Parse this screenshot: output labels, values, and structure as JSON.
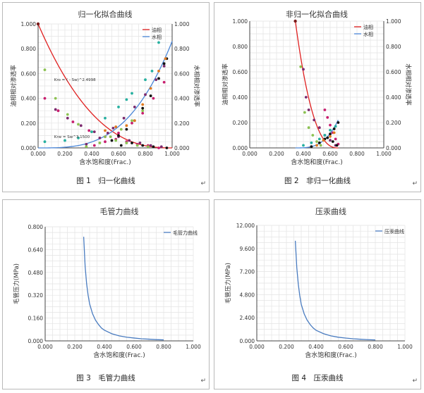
{
  "chart_data": [
    {
      "type": "line",
      "title": "归一化拟合曲线",
      "xlabel": "含水饱和度(Frac.)",
      "ylabel": "油相相对渗透率",
      "ylabel_right": "水相相对渗透率",
      "xlim": [
        0,
        1
      ],
      "ylim": [
        0,
        1
      ],
      "y2lim": [
        0,
        1
      ],
      "xticks": [
        "0.000",
        "0.200",
        "0.400",
        "0.600",
        "0.800",
        "1.000"
      ],
      "yticks": [
        "0.000",
        "0.200",
        "0.400",
        "0.600",
        "0.800",
        "1.000"
      ],
      "y2ticks": [
        "0.000",
        "0.200",
        "0.400",
        "0.600",
        "0.800",
        "1.000"
      ],
      "grid": true,
      "legend": "top-right",
      "series": [
        {
          "name": "油相",
          "color": "#e02020",
          "kind": "curve",
          "exponent": 2.4998,
          "from": 0.0,
          "to": 1.0,
          "dir": "oil"
        },
        {
          "name": "水相",
          "color": "#4a86d8",
          "kind": "curve",
          "exponent": 3.15,
          "from": 0.0,
          "to": 1.0,
          "dir": "water"
        }
      ],
      "annotations": [
        "Kro = ( - Sw)^2.4998",
        "Krw = Sw^3.1500"
      ],
      "scatter_groups": [
        {
          "color": "#7b2a6e",
          "points": [
            [
              0.13,
              0.31
            ],
            [
              0.22,
              0.24
            ],
            [
              0.32,
              0.18
            ],
            [
              0.42,
              0.13
            ],
            [
              0.52,
              0.12
            ],
            [
              0.6,
              0.09
            ],
            [
              0.68,
              0.06
            ],
            [
              0.76,
              0.04
            ],
            [
              0.84,
              0.02
            ],
            [
              0.92,
              0.01
            ],
            [
              0.36,
              0.03
            ],
            [
              0.46,
              0.08
            ],
            [
              0.56,
              0.16
            ],
            [
              0.64,
              0.24
            ],
            [
              0.72,
              0.33
            ],
            [
              0.8,
              0.43
            ],
            [
              0.88,
              0.55
            ],
            [
              0.94,
              0.66
            ]
          ]
        },
        {
          "color": "#c81e6e",
          "points": [
            [
              0.05,
              0.4
            ],
            [
              0.15,
              0.3
            ],
            [
              0.26,
              0.21
            ],
            [
              0.38,
              0.14
            ],
            [
              0.5,
              0.09
            ],
            [
              0.58,
              0.07
            ],
            [
              0.66,
              0.05
            ],
            [
              0.74,
              0.03
            ],
            [
              0.82,
              0.02
            ],
            [
              0.9,
              0.0
            ],
            [
              0.42,
              0.02
            ],
            [
              0.5,
              0.05
            ],
            [
              0.6,
              0.12
            ],
            [
              0.7,
              0.2
            ],
            [
              0.78,
              0.28
            ],
            [
              0.86,
              0.4
            ],
            [
              0.94,
              0.53
            ]
          ]
        },
        {
          "color": "#8cc252",
          "points": [
            [
              0.05,
              0.63
            ],
            [
              0.13,
              0.4
            ],
            [
              0.22,
              0.27
            ],
            [
              0.3,
              0.19
            ],
            [
              0.4,
              0.13
            ],
            [
              0.5,
              0.09
            ],
            [
              0.58,
              0.06
            ],
            [
              0.66,
              0.04
            ],
            [
              0.74,
              0.02
            ],
            [
              0.82,
              0.01
            ],
            [
              0.36,
              0.01
            ],
            [
              0.46,
              0.04
            ],
            [
              0.54,
              0.09
            ],
            [
              0.62,
              0.15
            ],
            [
              0.7,
              0.22
            ],
            [
              0.78,
              0.3
            ]
          ]
        },
        {
          "color": "#26b0a0",
          "points": [
            [
              0.05,
              0.05
            ],
            [
              0.2,
              0.06
            ],
            [
              0.3,
              0.08
            ],
            [
              0.4,
              0.13
            ],
            [
              0.5,
              0.24
            ],
            [
              0.6,
              0.33
            ],
            [
              0.66,
              0.39
            ],
            [
              0.7,
              0.44
            ],
            [
              0.8,
              0.55
            ],
            [
              0.85,
              0.62
            ],
            [
              0.9,
              0.85
            ]
          ]
        },
        {
          "color": "#111111",
          "points": [
            [
              0.55,
              0.06
            ],
            [
              0.6,
              0.1
            ],
            [
              0.66,
              0.15
            ],
            [
              0.72,
              0.22
            ],
            [
              0.78,
              0.32
            ],
            [
              0.84,
              0.42
            ],
            [
              0.9,
              0.56
            ],
            [
              0.94,
              0.68
            ],
            [
              0.96,
              0.72
            ],
            [
              0.62,
              0.02
            ],
            [
              0.7,
              0.04
            ],
            [
              0.78,
              0.02
            ],
            [
              0.86,
              0.01
            ],
            [
              0.96,
              0.0
            ]
          ]
        },
        {
          "color": "#e07a20",
          "points": [
            [
              0.5,
              0.14
            ],
            [
              0.58,
              0.17
            ],
            [
              0.66,
              0.18
            ],
            [
              0.72,
              0.22
            ],
            [
              0.78,
              0.35
            ],
            [
              0.84,
              0.48
            ],
            [
              0.9,
              0.62
            ],
            [
              0.95,
              0.72
            ]
          ]
        }
      ],
      "caption": "图 1　归一化曲线"
    },
    {
      "type": "line",
      "title": "非归一化拟合曲线",
      "xlabel": "含水饱和度(Frac.)",
      "ylabel": "油相相对渗透率",
      "ylabel_right": "水相相对渗透率",
      "xlim": [
        0,
        1
      ],
      "ylim": [
        0,
        1
      ],
      "y2lim": [
        0,
        1
      ],
      "xticks": [
        "0.000",
        "0.200",
        "0.400",
        "0.600",
        "0.800",
        "1.000"
      ],
      "yticks": [
        "0.000",
        "0.200",
        "0.400",
        "0.600",
        "0.800",
        "1.000"
      ],
      "y2ticks": [
        "0.000",
        "0.200",
        "0.400",
        "0.600",
        "0.800",
        "1.000"
      ],
      "grid": true,
      "legend": "top-right",
      "series": [
        {
          "name": "油相",
          "color": "#e02020",
          "kind": "curve",
          "exponent": 2.5,
          "from": 0.34,
          "to": 0.66,
          "dir": "oil"
        },
        {
          "name": "水相",
          "color": "#4a86d8",
          "kind": "curve",
          "exponent": 3.15,
          "from": 0.34,
          "to": 0.66,
          "dir": "water",
          "scale": 0.22
        }
      ],
      "scatter_groups": [
        {
          "color": "#7b2a6e",
          "points": [
            [
              0.4,
              0.62
            ],
            [
              0.42,
              0.4
            ],
            [
              0.44,
              0.3
            ],
            [
              0.48,
              0.22
            ],
            [
              0.52,
              0.16
            ],
            [
              0.56,
              0.1
            ],
            [
              0.6,
              0.06
            ],
            [
              0.64,
              0.02
            ]
          ]
        },
        {
          "color": "#c81e6e",
          "points": [
            [
              0.56,
              0.3
            ],
            [
              0.58,
              0.24
            ],
            [
              0.6,
              0.18
            ],
            [
              0.62,
              0.12
            ],
            [
              0.64,
              0.07
            ],
            [
              0.66,
              0.03
            ]
          ]
        },
        {
          "color": "#8cc252",
          "points": [
            [
              0.38,
              0.64
            ],
            [
              0.41,
              0.28
            ],
            [
              0.44,
              0.16
            ],
            [
              0.47,
              0.1
            ],
            [
              0.5,
              0.05
            ],
            [
              0.53,
              0.02
            ]
          ]
        },
        {
          "color": "#26b0a0",
          "points": [
            [
              0.4,
              0.02
            ],
            [
              0.46,
              0.04
            ],
            [
              0.52,
              0.07
            ],
            [
              0.56,
              0.1
            ],
            [
              0.6,
              0.14
            ],
            [
              0.64,
              0.17
            ]
          ]
        },
        {
          "color": "#111111",
          "points": [
            [
              0.46,
              0.01
            ],
            [
              0.52,
              0.04
            ],
            [
              0.56,
              0.07
            ],
            [
              0.6,
              0.11
            ],
            [
              0.63,
              0.15
            ],
            [
              0.66,
              0.2
            ],
            [
              0.58,
              0.08
            ],
            [
              0.62,
              0.05
            ],
            [
              0.65,
              0.02
            ]
          ]
        },
        {
          "color": "#e07a20",
          "points": [
            [
              0.5,
              0.02
            ],
            [
              0.55,
              0.06
            ],
            [
              0.6,
              0.09
            ],
            [
              0.63,
              0.12
            ]
          ]
        }
      ],
      "caption": "图 2　非归一化曲线"
    },
    {
      "type": "line",
      "title": "毛管力曲线",
      "xlabel": "含水饱和度(Frac.)",
      "ylabel": "毛管压力(MPa)",
      "xlim": [
        0,
        1
      ],
      "ylim": [
        0,
        0.8
      ],
      "xticks": [
        "0.000",
        "0.200",
        "0.400",
        "0.600",
        "0.800",
        "1.000"
      ],
      "yticks": [
        "0.000",
        "0.160",
        "0.320",
        "0.480",
        "0.640",
        "0.800"
      ],
      "grid": true,
      "legend": "top-right",
      "series": [
        {
          "name": "毛管力曲线",
          "color": "#4a7cc0",
          "x": [
            0.26,
            0.27,
            0.28,
            0.29,
            0.3,
            0.32,
            0.34,
            0.36,
            0.38,
            0.4,
            0.45,
            0.5,
            0.55,
            0.6,
            0.65,
            0.7,
            0.75,
            0.8
          ],
          "y": [
            0.73,
            0.52,
            0.4,
            0.32,
            0.26,
            0.19,
            0.145,
            0.115,
            0.09,
            0.075,
            0.05,
            0.035,
            0.026,
            0.02,
            0.015,
            0.012,
            0.009,
            0.007
          ]
        }
      ],
      "caption": "图 3　毛管力曲线"
    },
    {
      "type": "line",
      "title": "压汞曲线",
      "xlabel": "含水饱和度(Frac.)",
      "ylabel": "毛管压力(MPa)",
      "xlim": [
        0,
        1
      ],
      "ylim": [
        0,
        12
      ],
      "xticks": [
        "0.000",
        "0.200",
        "0.400",
        "0.600",
        "0.800",
        "1.000"
      ],
      "yticks": [
        "0.000",
        "2.400",
        "4.800",
        "7.200",
        "9.600",
        "12.000"
      ],
      "grid": true,
      "legend": "top-right",
      "series": [
        {
          "name": "压汞曲线",
          "color": "#4a7cc0",
          "x": [
            0.26,
            0.27,
            0.28,
            0.29,
            0.3,
            0.32,
            0.34,
            0.36,
            0.38,
            0.4,
            0.45,
            0.5,
            0.55,
            0.6,
            0.65,
            0.7,
            0.75,
            0.8
          ],
          "y": [
            10.4,
            7.6,
            5.9,
            4.7,
            3.8,
            2.8,
            2.15,
            1.7,
            1.35,
            1.1,
            0.75,
            0.52,
            0.38,
            0.29,
            0.22,
            0.17,
            0.13,
            0.1
          ]
        }
      ],
      "caption": "图 4　压汞曲线"
    }
  ],
  "caption_mark": "↵",
  "colors": {
    "grid": "#e3e3e3",
    "axis": "#444444",
    "frame": "#b9b9b9"
  }
}
